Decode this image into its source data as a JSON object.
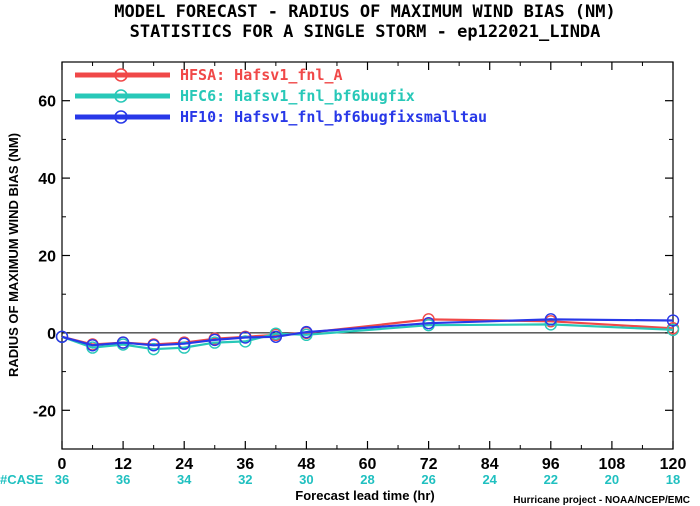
{
  "chart_data": {
    "type": "line",
    "title_line1": "MODEL FORECAST - RADIUS OF MAXIMUM WIND BIAS (NM)",
    "title_line2": "STATISTICS FOR A SINGLE STORM - ep122021_LINDA",
    "xlabel": "Forecast lead time (hr)",
    "ylabel": "RADIUS OF MAXIMUM WIND BIAS (NM)",
    "xlim": [
      0,
      120
    ],
    "ylim": [
      -30,
      70
    ],
    "xticks": [
      0,
      12,
      24,
      36,
      48,
      60,
      72,
      84,
      96,
      108,
      120
    ],
    "yticks": [
      -20,
      0,
      20,
      40,
      60
    ],
    "case_label": "#CASE",
    "cases": [
      36,
      36,
      34,
      32,
      30,
      28,
      26,
      24,
      22,
      20,
      18
    ],
    "credit": "Hurricane project - NOAA/NCEP/EMC",
    "legend_position": "top-left",
    "series": [
      {
        "name": "HFSA: Hafsv1_fnl_A",
        "color": "#f04848",
        "x": [
          0,
          6,
          12,
          18,
          24,
          30,
          36,
          42,
          48,
          72,
          96,
          120
        ],
        "y": [
          -1.0,
          -3.0,
          -2.5,
          -3.0,
          -2.5,
          -1.5,
          -1.0,
          -0.5,
          0.0,
          3.5,
          3.0,
          1.2
        ]
      },
      {
        "name": "HFC6: Hafsv1_fnl_bf6bugfix",
        "color": "#28c8b8",
        "x": [
          0,
          6,
          12,
          18,
          24,
          30,
          36,
          42,
          48,
          72,
          96,
          120
        ],
        "y": [
          -1.0,
          -3.8,
          -3.0,
          -4.2,
          -3.8,
          -2.5,
          -2.2,
          -0.2,
          -0.5,
          2.0,
          2.2,
          0.8
        ]
      },
      {
        "name": "HF10: Hafsv1_fnl_bf6bugfixsmalltau",
        "color": "#2838e8",
        "x": [
          0,
          6,
          12,
          18,
          24,
          30,
          36,
          42,
          48,
          72,
          96,
          120
        ],
        "y": [
          -1.0,
          -3.2,
          -2.5,
          -3.2,
          -2.8,
          -1.8,
          -1.2,
          -1.0,
          0.2,
          2.5,
          3.5,
          3.2
        ]
      }
    ]
  }
}
